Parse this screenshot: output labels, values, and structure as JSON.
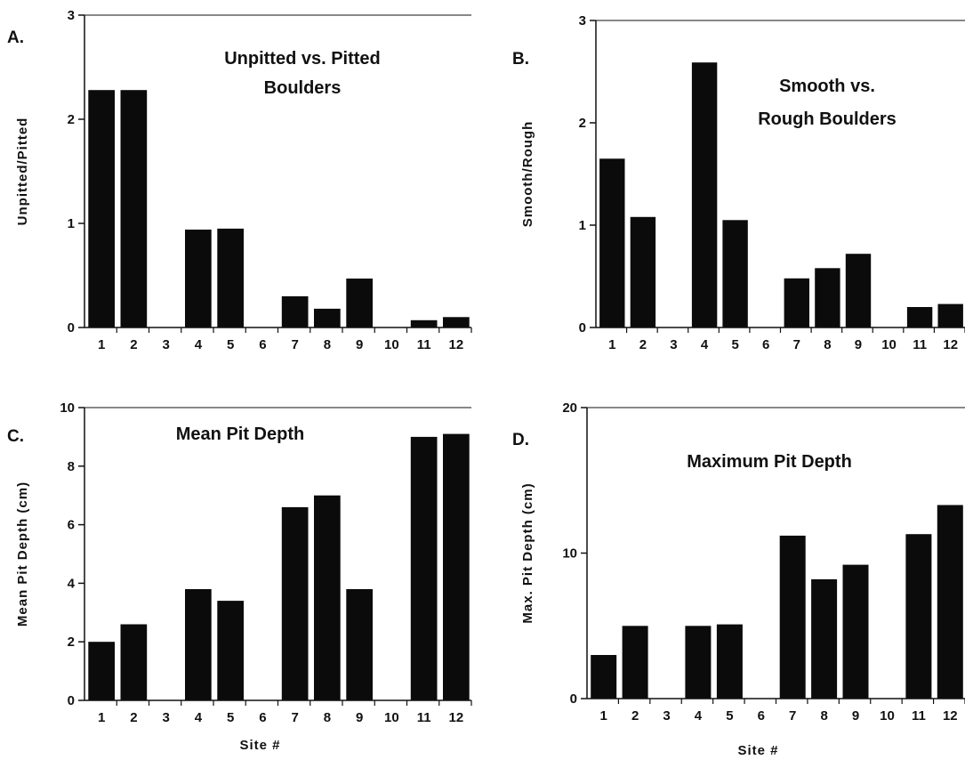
{
  "chart_data": [
    {
      "panel": "A.",
      "type": "bar",
      "title": [
        "Unpitted vs. Pitted",
        "Boulders"
      ],
      "ylabel": "Unpitted/Pitted",
      "xlabel": "",
      "categories": [
        "1",
        "2",
        "3",
        "4",
        "5",
        "6",
        "7",
        "8",
        "9",
        "10",
        "11",
        "12"
      ],
      "values": [
        2.28,
        2.28,
        0,
        0.94,
        0.95,
        0,
        0.3,
        0.18,
        0.47,
        0,
        0.07,
        0.1
      ],
      "ylim": [
        0,
        3
      ],
      "yticks": [
        "0",
        "1",
        "2",
        "3"
      ],
      "grid": false,
      "bar_color": "#0b0b0b"
    },
    {
      "panel": "B.",
      "type": "bar",
      "title": [
        "Smooth vs.",
        "Rough Boulders"
      ],
      "ylabel": "Smooth/Rough",
      "xlabel": "",
      "categories": [
        "1",
        "2",
        "3",
        "4",
        "5",
        "6",
        "7",
        "8",
        "9",
        "10",
        "11",
        "12"
      ],
      "values": [
        1.65,
        1.08,
        0,
        2.59,
        1.05,
        0,
        0.48,
        0.58,
        0.72,
        0,
        0.2,
        0.23
      ],
      "ylim": [
        0,
        3
      ],
      "yticks": [
        "0",
        "1",
        "2",
        "3"
      ],
      "grid": false,
      "bar_color": "#0b0b0b"
    },
    {
      "panel": "C.",
      "type": "bar",
      "title": [
        "Mean Pit Depth"
      ],
      "ylabel": "Mean  Pit  Depth  (cm)",
      "xlabel": "Site #",
      "categories": [
        "1",
        "2",
        "3",
        "4",
        "5",
        "6",
        "7",
        "8",
        "9",
        "10",
        "11",
        "12"
      ],
      "values": [
        2.0,
        2.6,
        0,
        3.8,
        3.4,
        0,
        6.6,
        7.0,
        3.8,
        0,
        9.0,
        9.1
      ],
      "ylim": [
        0,
        10
      ],
      "yticks": [
        "0",
        "2",
        "4",
        "6",
        "8",
        "10"
      ],
      "grid": false,
      "bar_color": "#0b0b0b"
    },
    {
      "panel": "D.",
      "type": "bar",
      "title": [
        "Maximum Pit Depth"
      ],
      "ylabel": "Max.  Pit  Depth  (cm)",
      "xlabel": "Site #",
      "categories": [
        "1",
        "2",
        "3",
        "4",
        "5",
        "6",
        "7",
        "8",
        "9",
        "10",
        "11",
        "12"
      ],
      "values": [
        3.0,
        5.0,
        0,
        5.0,
        5.1,
        0,
        11.2,
        8.2,
        9.2,
        0,
        11.3,
        13.3
      ],
      "ylim": [
        0,
        20
      ],
      "yticks": [
        "0",
        "10",
        "20"
      ],
      "grid": false,
      "bar_color": "#0b0b0b"
    }
  ]
}
